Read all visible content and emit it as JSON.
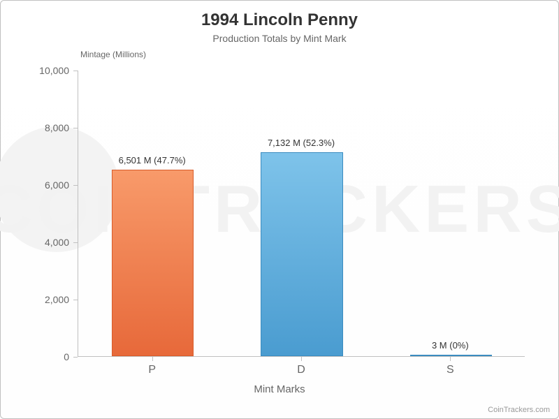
{
  "chart": {
    "type": "bar",
    "title": "1994 Lincoln Penny",
    "subtitle": "Production Totals by Mint Mark",
    "title_fontsize": 24,
    "subtitle_fontsize": 14,
    "title_color": "#333333",
    "subtitle_color": "#666666",
    "background_color": "#ffffff",
    "border_color": "#c0c0c0",
    "y_axis_title": "Mintage (Millions)",
    "x_axis_title": "Mint Marks",
    "axis_label_color": "#666666",
    "ylim": [
      0,
      10000
    ],
    "ytick_step": 2000,
    "yticks": [
      {
        "value": 0,
        "label": "0"
      },
      {
        "value": 2000,
        "label": "2,000"
      },
      {
        "value": 4000,
        "label": "4,000"
      },
      {
        "value": 6000,
        "label": "6,000"
      },
      {
        "value": 8000,
        "label": "8,000"
      },
      {
        "value": 10000,
        "label": "10,000"
      }
    ],
    "categories": [
      "P",
      "D",
      "S"
    ],
    "values": [
      6501,
      7132,
      3
    ],
    "percentages": [
      47.7,
      52.3,
      0
    ],
    "bar_labels": [
      "6,501 M (47.7%)",
      "7,132 M (52.3%)",
      "3 M (0%)"
    ],
    "bar_colors_top": [
      "#f89a6a",
      "#7ec3ea",
      "#7ec3ea"
    ],
    "bar_colors_bottom": [
      "#e7693a",
      "#4a9cd0",
      "#4a9cd0"
    ],
    "bar_border_colors": [
      "#d95c2a",
      "#3b8cc0",
      "#3b8cc0"
    ],
    "bar_width_ratio": 0.55,
    "watermark_text": "COINTRACKERS",
    "watermark_color": "#f2f2f2",
    "attribution": "CoinTrackers.com"
  }
}
